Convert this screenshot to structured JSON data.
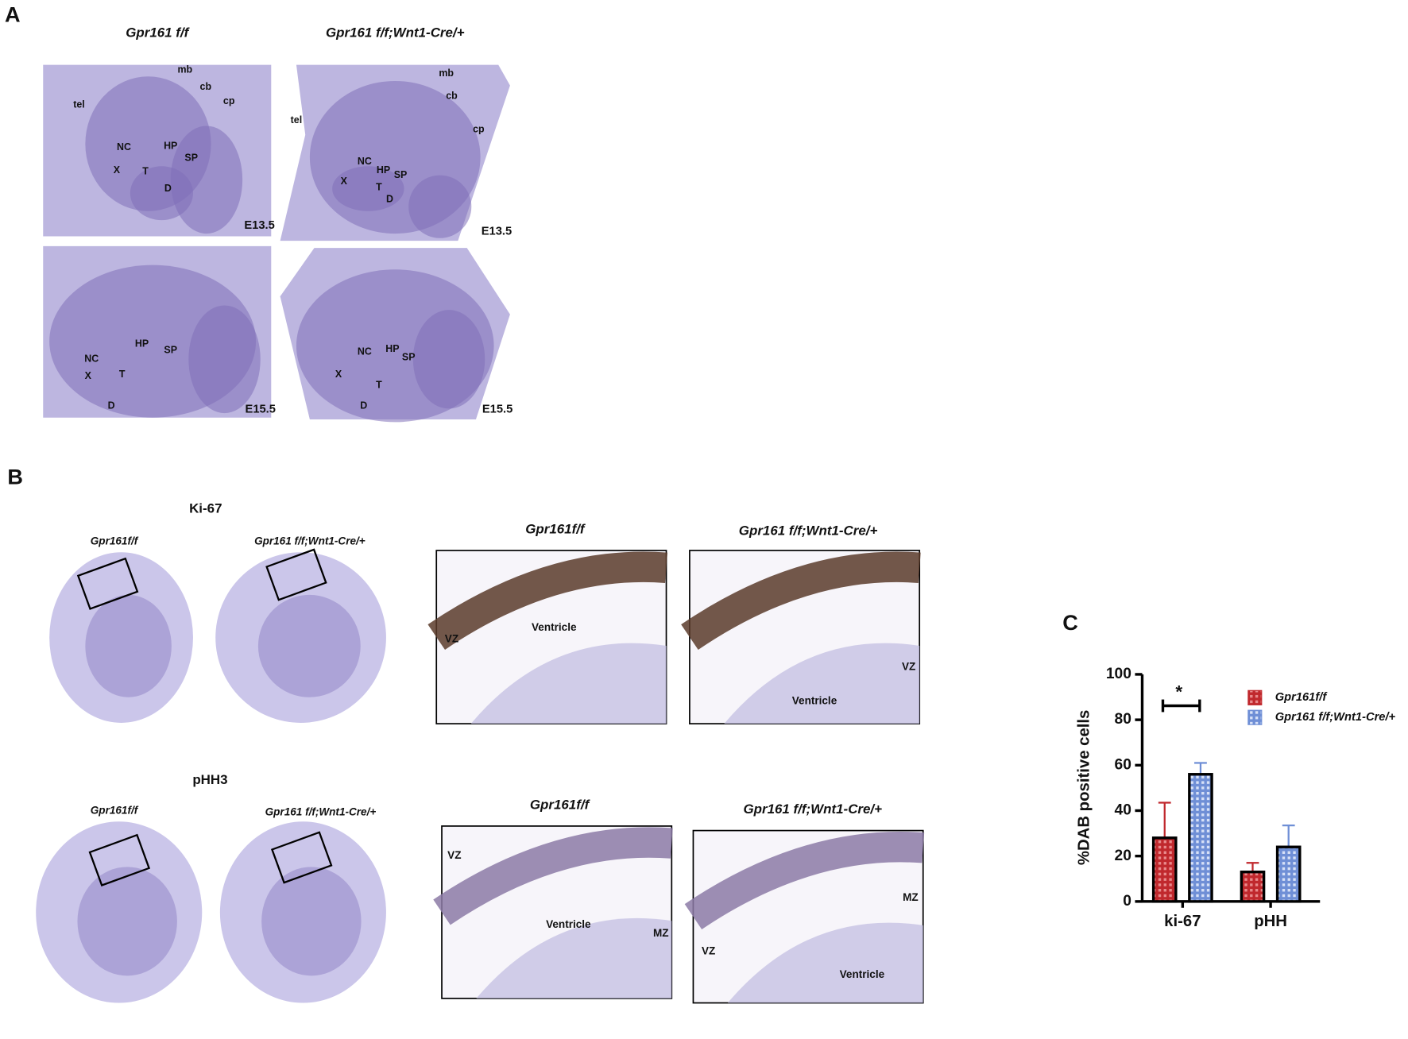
{
  "panel_a": {
    "label": "A",
    "columns": [
      "Gpr161 f/f",
      "Gpr161 f/f;Wnt1-Cre/+"
    ],
    "images": [
      {
        "stage": "E13.5",
        "annotations": [
          "tel",
          "mb",
          "cb",
          "cp",
          "NC",
          "HP",
          "SP",
          "X",
          "T",
          "D"
        ]
      },
      {
        "stage": "E13.5",
        "annotations": [
          "tel",
          "mb",
          "cb",
          "cp",
          "NC",
          "HP",
          "SP",
          "X",
          "T",
          "D"
        ]
      },
      {
        "stage": "E15.5",
        "annotations": [
          "NC",
          "HP",
          "SP",
          "X",
          "T",
          "D"
        ]
      },
      {
        "stage": "E15.5",
        "annotations": [
          "NC",
          "HP",
          "SP",
          "X",
          "T",
          "D"
        ]
      }
    ]
  },
  "panel_b": {
    "label": "B",
    "rows": [
      {
        "stain": "Ki-67",
        "head_labels": [
          "Gpr161f/f",
          "Gpr161 f/f;Wnt1-Cre/+"
        ],
        "insets": [
          {
            "title": "Gpr161f/f",
            "annotations": [
              "VZ",
              "Ventricle"
            ]
          },
          {
            "title": "Gpr161 f/f;Wnt1-Cre/+",
            "annotations": [
              "VZ",
              "Ventricle"
            ]
          }
        ]
      },
      {
        "stain": "pHH3",
        "head_labels": [
          "Gpr161f/f",
          "Gpr161 f/f;Wnt1-Cre/+"
        ],
        "insets": [
          {
            "title": "Gpr161f/f",
            "annotations": [
              "VZ",
              "Ventricle",
              "MZ"
            ]
          },
          {
            "title": "Gpr161 f/f;Wnt1-Cre/+",
            "annotations": [
              "MZ",
              "VZ",
              "Ventricle"
            ]
          }
        ]
      }
    ]
  },
  "chart_data": {
    "type": "bar",
    "label": "C",
    "y_label": "%DAB positive cells",
    "categories": [
      "ki-67",
      "pHH"
    ],
    "series": [
      {
        "name": "Gpr161f/f",
        "color": "#c0282d",
        "values": [
          28,
          13
        ],
        "errors": [
          15.5,
          4
        ]
      },
      {
        "name": "Gpr161 f/f;Wnt1-Cre/+",
        "color": "#6f8fd6",
        "values": [
          56,
          24
        ],
        "errors": [
          5,
          9.5
        ]
      }
    ],
    "ylim": [
      0,
      100
    ],
    "yticks": [
      0,
      20,
      40,
      60,
      80,
      100
    ],
    "annotations": [
      "*"
    ]
  }
}
